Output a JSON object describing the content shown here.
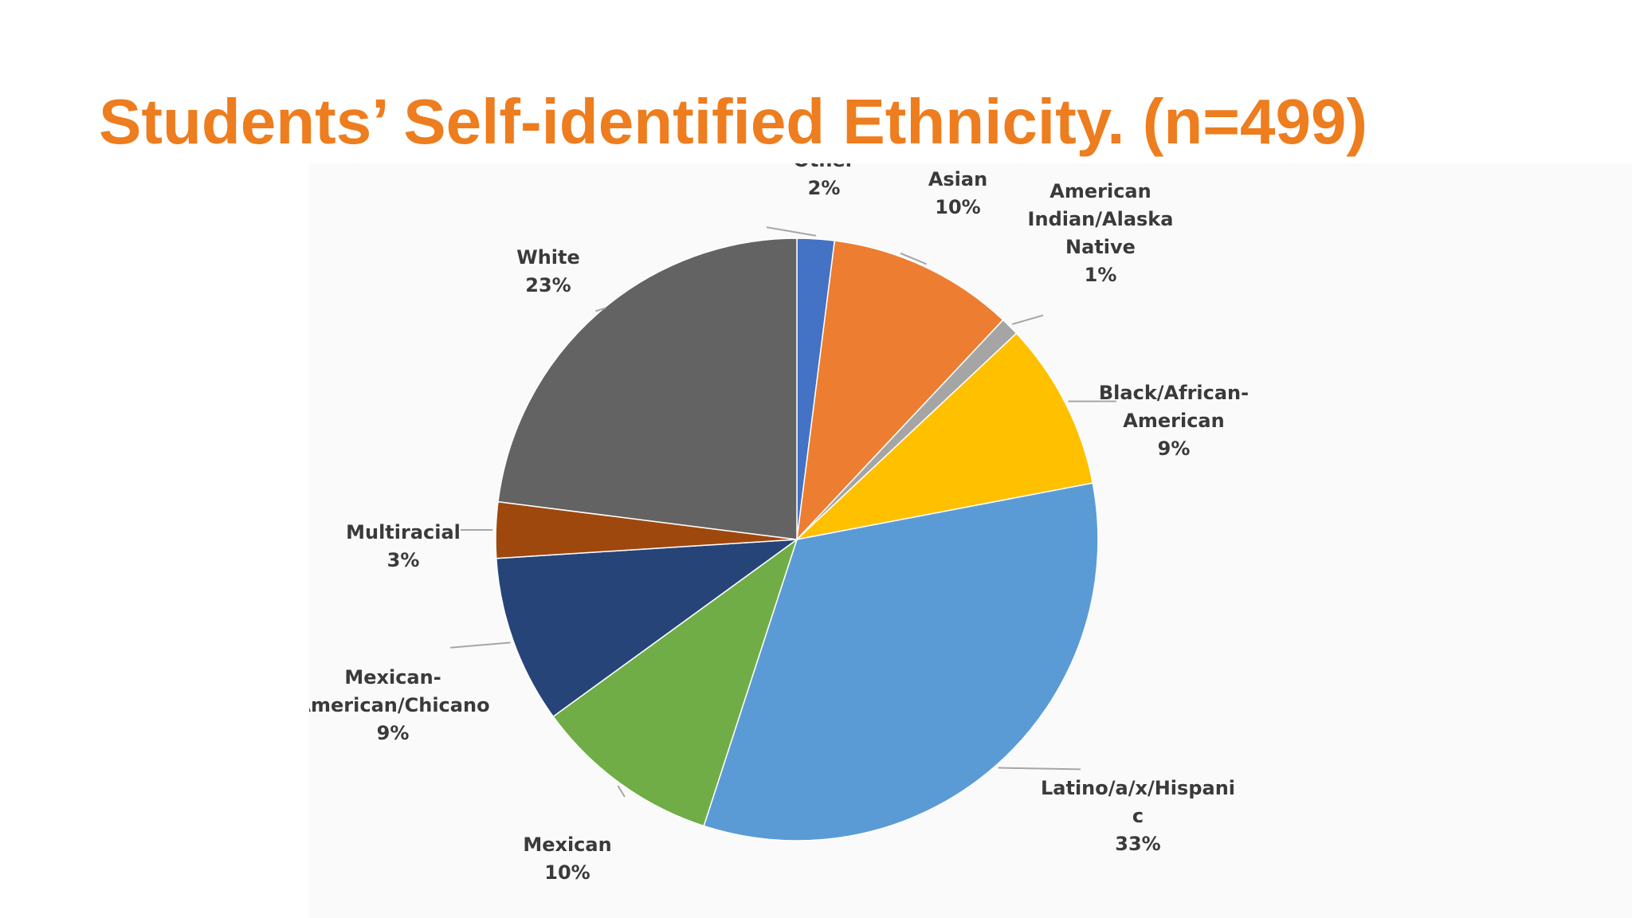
{
  "slide": {
    "title": "Students’ Self-identified Ethnicity. (n=499)",
    "title_color": "#ED7D1E"
  },
  "chart_data": {
    "type": "pie",
    "title": "",
    "slices": [
      {
        "label": [
          "Other"
        ],
        "pct_text": "2%",
        "value": 2,
        "color": "#4472C4"
      },
      {
        "label": [
          "Asian"
        ],
        "pct_text": "10%",
        "value": 10,
        "color": "#ED7D31"
      },
      {
        "label": [
          "American",
          "Indian/Alaska",
          "Native"
        ],
        "pct_text": "1%",
        "value": 1,
        "color": "#A5A5A5"
      },
      {
        "label": [
          "Black/African-",
          "American"
        ],
        "pct_text": "9%",
        "value": 9,
        "color": "#FFC000"
      },
      {
        "label": [
          "Latino/a/x/Hispani",
          "c"
        ],
        "pct_text": "33%",
        "value": 33,
        "color": "#5B9BD5"
      },
      {
        "label": [
          "Mexican"
        ],
        "pct_text": "10%",
        "value": 10,
        "color": "#70AD47"
      },
      {
        "label": [
          "Mexican-",
          "American/Chicano"
        ],
        "pct_text": "9%",
        "value": 9,
        "color": "#264478"
      },
      {
        "label": [
          "Multiracial"
        ],
        "pct_text": "3%",
        "value": 3,
        "color": "#9E480E"
      },
      {
        "label": [
          "White"
        ],
        "pct_text": "23%",
        "value": 23,
        "color": "#636363"
      }
    ],
    "legend": "none"
  }
}
